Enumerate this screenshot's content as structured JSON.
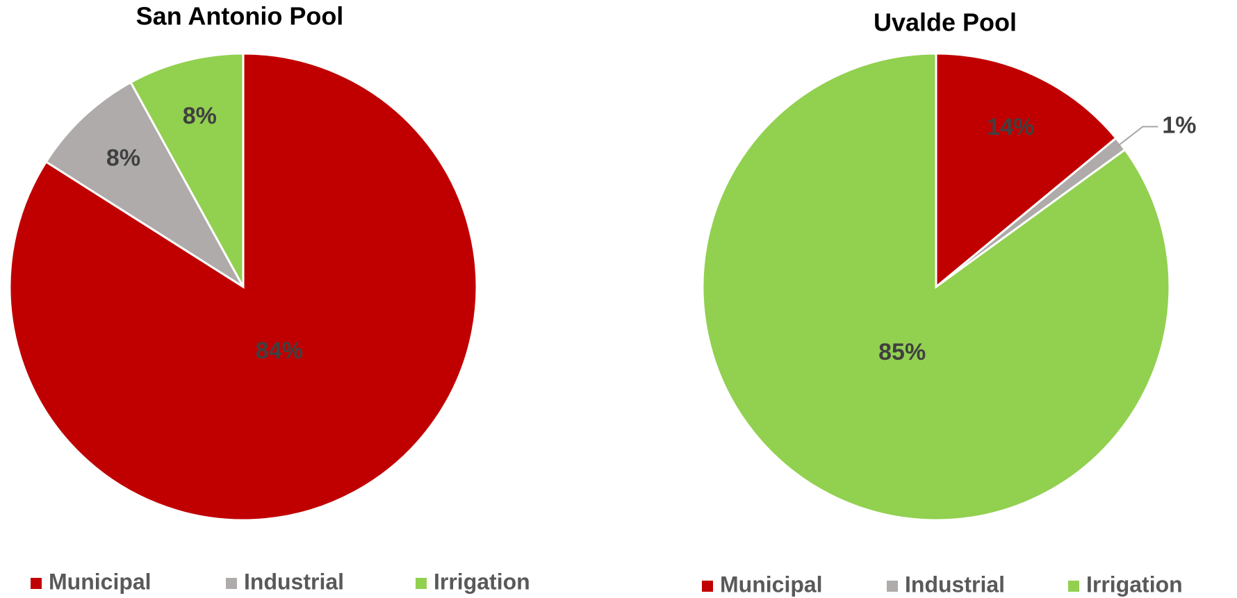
{
  "chart_data": [
    {
      "type": "pie",
      "title": "San Antonio Pool",
      "categories": [
        "Municipal",
        "Industrial",
        "Irrigation"
      ],
      "values": [
        84,
        8,
        8
      ],
      "value_labels": [
        "84%",
        "8%",
        "8%"
      ],
      "colors": [
        "#c00000",
        "#afabab",
        "#92d050"
      ],
      "legend": "bottom"
    },
    {
      "type": "pie",
      "title": "Uvalde Pool",
      "categories": [
        "Municipal",
        "Industrial",
        "Irrigation"
      ],
      "values": [
        14,
        1,
        85
      ],
      "value_labels": [
        "14%",
        "1%",
        "85%"
      ],
      "colors": [
        "#c00000",
        "#afabab",
        "#92d050"
      ],
      "legend": "bottom"
    }
  ]
}
